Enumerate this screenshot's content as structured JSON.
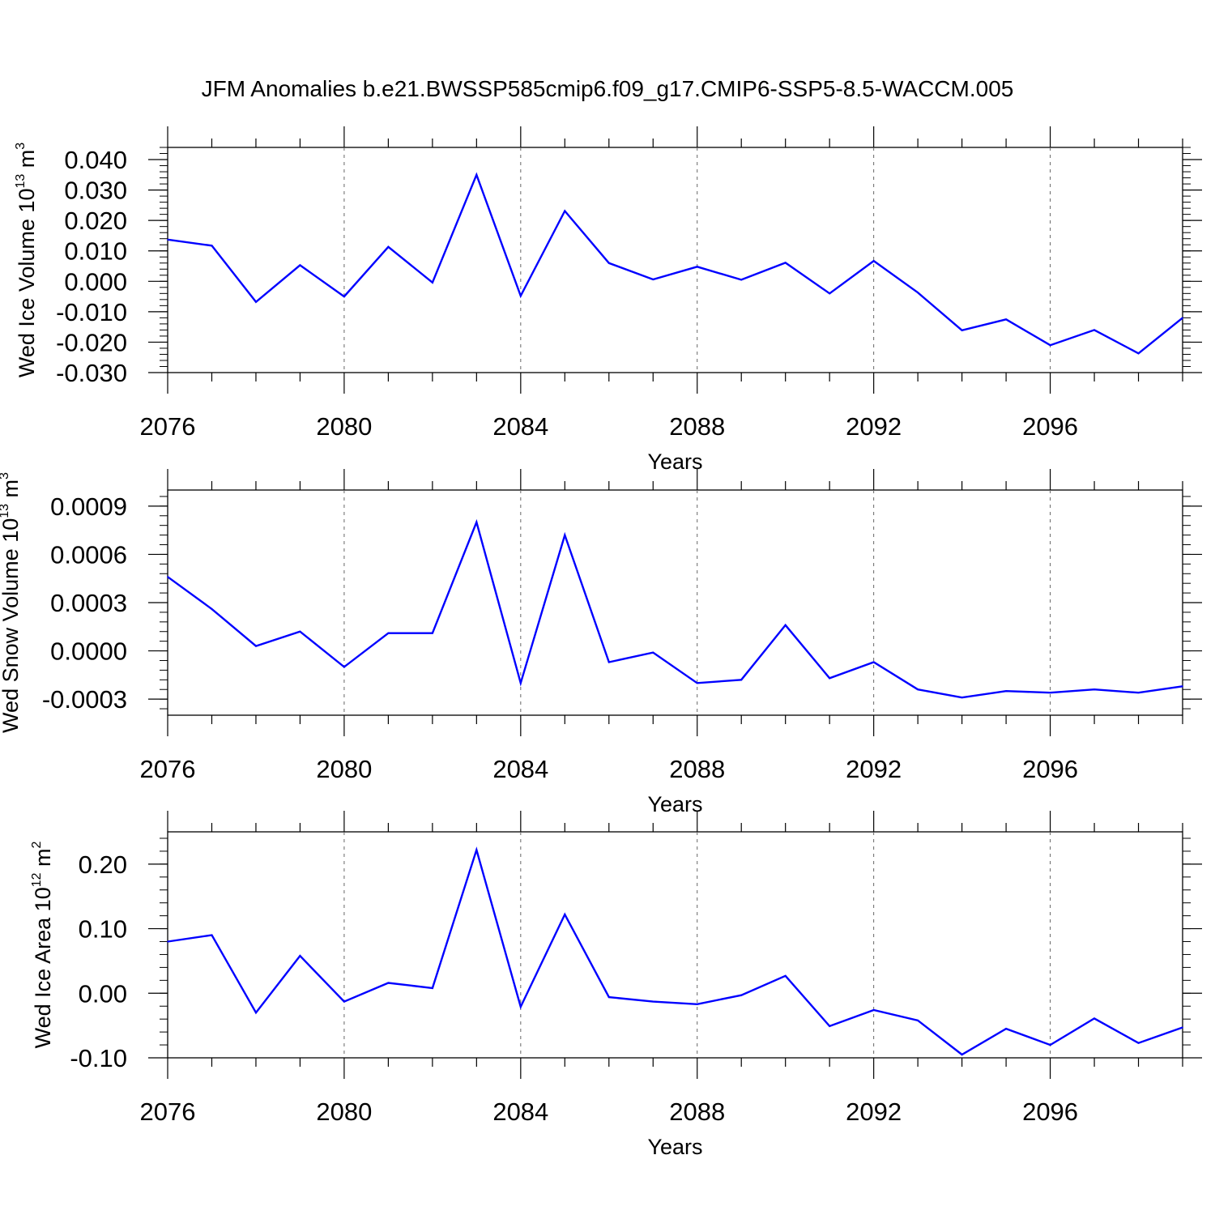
{
  "title": "JFM Anomalies b.e21.BWSSP585cmip6.f09_g17.CMIP6-SSP5-8.5-WACCM.005",
  "chart_data": [
    {
      "type": "line",
      "ylabel": {
        "base": "Wed Ice Volume 10",
        "exp": "13",
        "unit": " m",
        "unit_exp": "3"
      },
      "xlabel": "Years",
      "xlim": [
        2076,
        2099
      ],
      "xticks": [
        2076,
        2080,
        2084,
        2088,
        2092,
        2096
      ],
      "ylim": [
        -0.03,
        0.044
      ],
      "yticks": [
        -0.03,
        -0.02,
        -0.01,
        0.0,
        0.01,
        0.02,
        0.03,
        0.04
      ],
      "ytick_labels": [
        "-0.030",
        "-0.020",
        "-0.010",
        "0.000",
        "0.010",
        "0.020",
        "0.030",
        "0.040"
      ],
      "line_color": "#0000ff",
      "grid": "dashed vertical at major x ticks",
      "x": [
        2076,
        2077,
        2078,
        2079,
        2080,
        2081,
        2082,
        2083,
        2084,
        2085,
        2086,
        2087,
        2088,
        2089,
        2090,
        2091,
        2092,
        2093,
        2094,
        2095,
        2096,
        2097,
        2098,
        2099
      ],
      "values": [
        0.0137,
        0.0117,
        -0.0068,
        0.0053,
        -0.005,
        0.0113,
        -0.0004,
        0.035,
        -0.0048,
        0.0231,
        0.006,
        0.0006,
        0.0048,
        0.0005,
        0.0061,
        -0.004,
        0.0067,
        -0.0037,
        -0.0161,
        -0.0125,
        -0.021,
        -0.016,
        -0.0237,
        -0.012
      ]
    },
    {
      "type": "line",
      "ylabel": {
        "base": "Wed Snow Volume 10",
        "exp": "13",
        "unit": " m",
        "unit_exp": "3"
      },
      "xlabel": "Years",
      "xlim": [
        2076,
        2099
      ],
      "xticks": [
        2076,
        2080,
        2084,
        2088,
        2092,
        2096
      ],
      "ylim": [
        -0.0004,
        0.001
      ],
      "yticks": [
        -0.0003,
        0.0,
        0.0003,
        0.0006,
        0.0009
      ],
      "ytick_labels": [
        "-0.0003",
        "0.0000",
        "0.0003",
        "0.0006",
        "0.0009"
      ],
      "line_color": "#0000ff",
      "grid": "dashed vertical at major x ticks",
      "x": [
        2076,
        2077,
        2078,
        2079,
        2080,
        2081,
        2082,
        2083,
        2084,
        2085,
        2086,
        2087,
        2088,
        2089,
        2090,
        2091,
        2092,
        2093,
        2094,
        2095,
        2096,
        2097,
        2098,
        2099
      ],
      "values": [
        0.00046,
        0.00026,
        3e-05,
        0.00012,
        -0.0001,
        0.00011,
        0.00011,
        0.0008,
        -0.0002,
        0.00072,
        -7e-05,
        -1e-05,
        -0.0002,
        -0.00018,
        0.00016,
        -0.00017,
        -7e-05,
        -0.00024,
        -0.00029,
        -0.00025,
        -0.00026,
        -0.00024,
        -0.00026,
        -0.00022
      ]
    },
    {
      "type": "line",
      "ylabel": {
        "base": "Wed Ice Area 10",
        "exp": "12",
        "unit": " m",
        "unit_exp": "2"
      },
      "xlabel": "Years",
      "xlim": [
        2076,
        2099
      ],
      "xticks": [
        2076,
        2080,
        2084,
        2088,
        2092,
        2096
      ],
      "ylim": [
        -0.1,
        0.25
      ],
      "yticks": [
        -0.1,
        0.0,
        0.1,
        0.2
      ],
      "ytick_labels": [
        "-0.10",
        "0.00",
        "0.10",
        "0.20"
      ],
      "line_color": "#0000ff",
      "grid": "dashed vertical at major x ticks",
      "x": [
        2076,
        2077,
        2078,
        2079,
        2080,
        2081,
        2082,
        2083,
        2084,
        2085,
        2086,
        2087,
        2088,
        2089,
        2090,
        2091,
        2092,
        2093,
        2094,
        2095,
        2096,
        2097,
        2098,
        2099
      ],
      "values": [
        0.08,
        0.09,
        -0.03,
        0.058,
        -0.013,
        0.016,
        0.008,
        0.222,
        -0.021,
        0.122,
        -0.006,
        -0.013,
        -0.017,
        -0.003,
        0.027,
        -0.051,
        -0.026,
        -0.042,
        -0.095,
        -0.055,
        -0.08,
        -0.039,
        -0.077,
        -0.053
      ]
    }
  ]
}
